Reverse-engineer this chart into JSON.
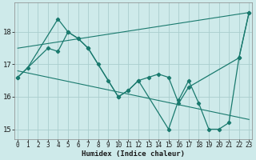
{
  "xlabel": "Humidex (Indice chaleur)",
  "ylabel": "",
  "bg_color": "#ceeaea",
  "line_color": "#1a7a6e",
  "grid_color": "#aacece",
  "x_values": [
    0,
    1,
    2,
    3,
    4,
    5,
    6,
    7,
    8,
    9,
    10,
    11,
    12,
    13,
    14,
    15,
    16,
    17,
    18,
    19,
    20,
    21,
    22,
    23
  ],
  "series1": [
    16.6,
    16.9,
    null,
    null,
    18.4,
    18.0,
    17.8,
    17.5,
    null,
    null,
    16.0,
    16.2,
    16.5,
    16.6,
    16.7,
    16.6,
    15.8,
    16.3,
    null,
    null,
    null,
    null,
    17.2,
    18.6
  ],
  "series2": [
    16.6,
    null,
    null,
    17.5,
    17.4,
    18.0,
    17.8,
    17.5,
    17.0,
    16.5,
    16.0,
    16.2,
    16.5,
    null,
    null,
    15.0,
    15.9,
    16.5,
    15.8,
    15.0,
    15.0,
    15.2,
    17.2,
    18.6
  ],
  "trend1_x": [
    0,
    23
  ],
  "trend1_y": [
    17.5,
    18.6
  ],
  "trend2_x": [
    0,
    23
  ],
  "trend2_y": [
    16.8,
    15.3
  ],
  "ylim": [
    14.7,
    18.9
  ],
  "xlim": [
    -0.3,
    23.3
  ],
  "yticks": [
    15,
    16,
    17,
    18
  ],
  "xticks": [
    0,
    1,
    2,
    3,
    4,
    5,
    6,
    7,
    8,
    9,
    10,
    11,
    12,
    13,
    14,
    15,
    16,
    17,
    18,
    19,
    20,
    21,
    22,
    23
  ],
  "tick_fontsize": 5.5,
  "xlabel_fontsize": 6.5
}
